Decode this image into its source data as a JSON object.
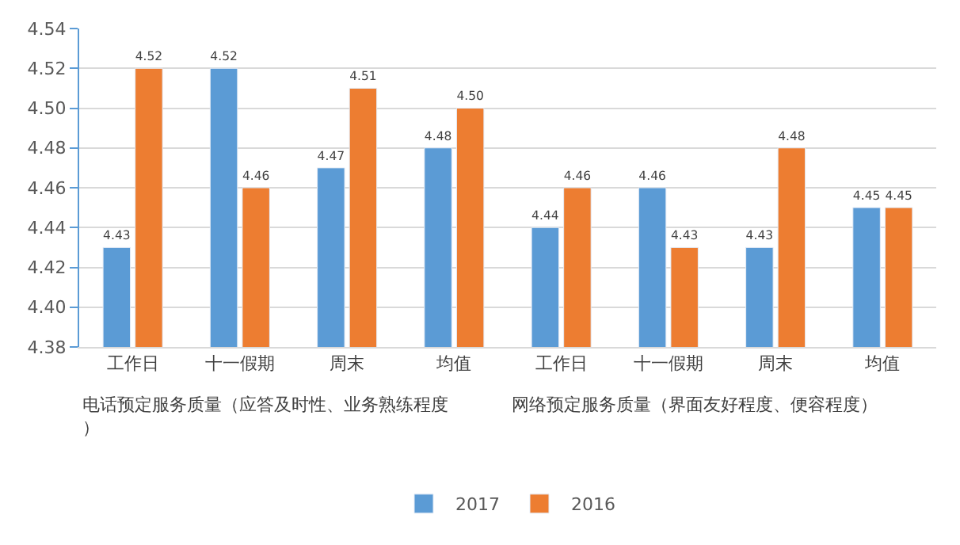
{
  "chart_data": {
    "type": "bar",
    "categories": [
      "工作日",
      "十一假期",
      "周末",
      "均值",
      "工作日",
      "十一假期",
      "周末",
      "均值"
    ],
    "series": [
      {
        "name": "2017",
        "color": "#5b9bd5",
        "values": [
          4.43,
          4.52,
          4.47,
          4.48,
          4.44,
          4.46,
          4.43,
          4.45
        ],
        "value_labels": [
          "4.43",
          "4.52",
          "4.47",
          "4.48",
          "4.44",
          "4.46",
          "4.43",
          "4.45"
        ]
      },
      {
        "name": "2016",
        "color": "#ed7d31",
        "values": [
          4.52,
          4.46,
          4.51,
          4.5,
          4.46,
          4.43,
          4.48,
          4.45
        ],
        "value_labels": [
          "4.52",
          "4.46",
          "4.51",
          "4.50",
          "4.46",
          "4.43",
          "4.48",
          "4.45"
        ]
      }
    ],
    "annotations": [
      "电话预定服务质量（应答及时性、业务熟练程度）",
      "网络预定服务质量（界面友好程度、便容程度）"
    ],
    "ylim": [
      4.38,
      4.54
    ],
    "yticks": [
      {
        "value": 4.38,
        "label": "4.38"
      },
      {
        "value": 4.4,
        "label": "4.40"
      },
      {
        "value": 4.42,
        "label": "4.42"
      },
      {
        "value": 4.44,
        "label": "4.44"
      },
      {
        "value": 4.46,
        "label": "4.46"
      },
      {
        "value": 4.48,
        "label": "4.48"
      },
      {
        "value": 4.5,
        "label": "4.50"
      },
      {
        "value": 4.52,
        "label": "4.52"
      },
      {
        "value": 4.54,
        "label": "4.54"
      }
    ],
    "grid": "y",
    "legend": "bottom"
  }
}
